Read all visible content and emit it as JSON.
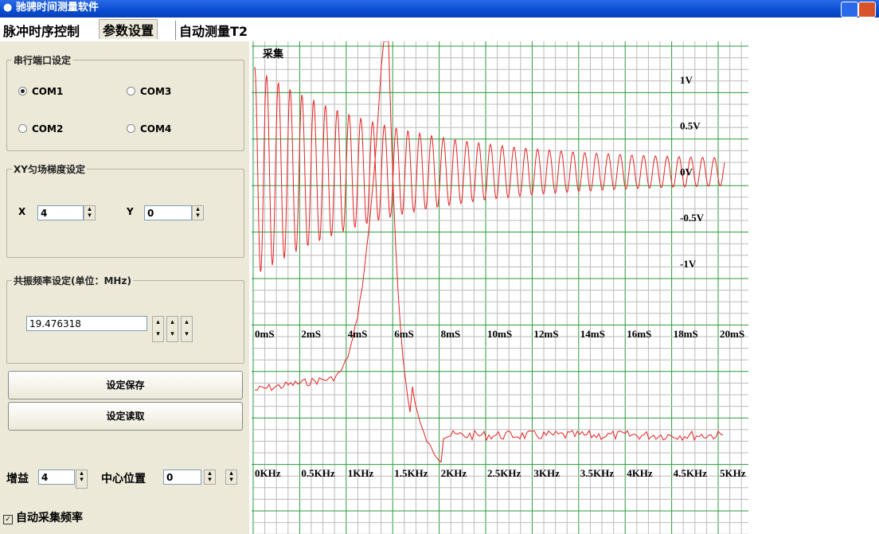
{
  "window": {
    "title": "驰骋时间测量软件"
  },
  "tabs": [
    "脉冲时序控制",
    "参数设置",
    "自动测量T2"
  ],
  "serial": {
    "title": "串行端口设定",
    "options": [
      "COM1",
      "COM3",
      "COM2",
      "COM4"
    ]
  },
  "xy": {
    "title": "XY匀场梯度设定",
    "x_label": "X",
    "x_value": "4",
    "y_label": "Y",
    "y_value": "0"
  },
  "freq": {
    "title": "共振频率设定(单位：MHz)",
    "value": "19.476318"
  },
  "buttons": [
    "设定保存",
    "设定读取"
  ],
  "gain": {
    "label": "增益",
    "value": "4"
  },
  "center": {
    "label": "中心位置",
    "value": "0"
  },
  "auto": {
    "label": "自动采集频率"
  },
  "scope": {
    "title": "采集",
    "volt_labels": [
      "1V",
      "0.5V",
      "0V",
      "-0.5V",
      "-1V"
    ],
    "time_labels": [
      "0mS",
      "2mS",
      "4mS",
      "6mS",
      "8mS",
      "10mS",
      "12mS",
      "14mS",
      "16mS",
      "18mS",
      "20mS"
    ],
    "freq_labels": [
      "0KHz",
      "0.5KHz",
      "1KHz",
      "1.5KHz",
      "2KHz",
      "2.5KHz",
      "3KHz",
      "3.5KHz",
      "4KHz",
      "4.5KHz",
      "5KHz"
    ]
  }
}
